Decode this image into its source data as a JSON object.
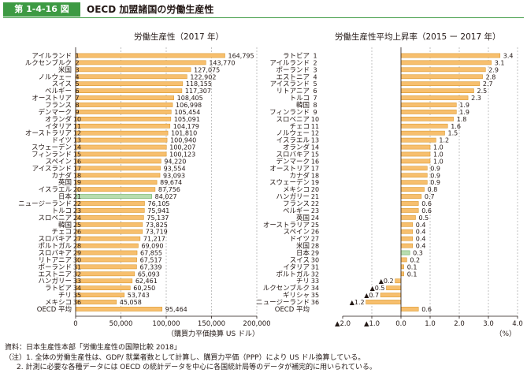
{
  "header": {
    "figure_number": "第 1-4-16 図",
    "title": "OECD 加盟諸国の労働生産性"
  },
  "colors": {
    "bar": "#f7bf6e",
    "bar_stroke": "#d4901f",
    "highlight_bar": "#b8ddb0",
    "highlight_stroke": "#5aa552",
    "axis": "#231815",
    "grid": "#9a9a9a",
    "header_green": "#3d9a43"
  },
  "chart_data": [
    {
      "type": "bar",
      "orientation": "horizontal",
      "title": "労働生産性（2017 年）",
      "xlabel": "（購買力平価換算 US ドル）",
      "xlim": [
        0,
        200000
      ],
      "xticks": [
        "0",
        "50,000",
        "100,000",
        "150,000",
        "200,000"
      ],
      "xtick_values": [
        0,
        50000,
        100000,
        150000,
        200000
      ],
      "grid": "vertical dashed",
      "highlight_category": "日本",
      "categories": [
        "アイルランド",
        "ルクセンブルク",
        "米国",
        "ノルウェー",
        "スイス",
        "ベルギー",
        "オーストリア",
        "フランス",
        "デンマーク",
        "オランダ",
        "イタリア",
        "オーストラリア",
        "ドイツ",
        "スウェーデン",
        "フィンランド",
        "スペイン",
        "アイスランド",
        "カナダ",
        "英国",
        "イスラエル",
        "日本",
        "ニュージーランド",
        "トルコ",
        "スロベニア",
        "韓国",
        "チェコ",
        "スロバキア",
        "ポルトガル",
        "スロバキア",
        "リトアニア",
        "ポーランド",
        "エストニア",
        "ハンガリー",
        "ラトビア",
        "チリ",
        "メキシコ",
        "OECD 平均"
      ],
      "ranks": [
        "1",
        "2",
        "3",
        "4",
        "5",
        "6",
        "7",
        "8",
        "9",
        "10",
        "11",
        "12",
        "13",
        "14",
        "15",
        "16",
        "17",
        "18",
        "19",
        "20",
        "21",
        "22",
        "23",
        "24",
        "25",
        "26",
        "27",
        "28",
        "29",
        "30",
        "31",
        "32",
        "33",
        "34",
        "35",
        "36",
        ""
      ],
      "values": [
        164795,
        143770,
        127075,
        122902,
        118155,
        117307,
        108405,
        106998,
        105454,
        105091,
        104179,
        101810,
        100940,
        100207,
        100123,
        94220,
        93554,
        93093,
        89674,
        87756,
        84027,
        76105,
        75941,
        75137,
        73825,
        73719,
        71217,
        69090,
        67855,
        67517,
        67339,
        65093,
        62461,
        60250,
        53743,
        45058,
        95464
      ],
      "value_labels": [
        "164,795",
        "143,770",
        "127,075",
        "122,902",
        "118,155",
        "117,307",
        "108,405",
        "106,998",
        "105,454",
        "105,091",
        "104,179",
        "101,810",
        "100,940",
        "100,207",
        "100,123",
        "94,220",
        "93,554",
        "93,093",
        "89,674",
        "87,756",
        "84,027",
        "76,105",
        "75,941",
        "75,137",
        "73,825",
        "73,719",
        "71,217",
        "69,090",
        "67,855",
        "67,517",
        "67,339",
        "65,093",
        "62,461",
        "60,250",
        "53,743",
        "45,058",
        "95,464"
      ]
    },
    {
      "type": "bar",
      "orientation": "horizontal",
      "title": "労働生産性平均上昇率（2015 ー 2017 年）",
      "xlabel": "（%）",
      "xlim": [
        -2.0,
        4.0
      ],
      "xticks": [
        "▲2.0",
        "▲1.0",
        "0.0",
        "1.0",
        "2.0",
        "3.0",
        "4.0"
      ],
      "xtick_values": [
        -2,
        -1,
        0,
        1,
        2,
        3,
        4
      ],
      "grid": "vertical dashed",
      "highlight_category": "日本",
      "categories": [
        "ラトビア",
        "アイルランド",
        "ポーランド",
        "エストニア",
        "アイスランド",
        "リトアニア",
        "トルコ",
        "韓国",
        "フィンランド",
        "スロベニア",
        "チェコ",
        "ノルウェー",
        "イスラエル",
        "オランダ",
        "スロバキア",
        "デンマーク",
        "オーストリア",
        "カナダ",
        "スウェーデン",
        "メキシコ",
        "ハンガリー",
        "フランス",
        "ベルギー",
        "英国",
        "オーストラリア",
        "スペイン",
        "ドイツ",
        "米国",
        "日本",
        "スイス",
        "イタリア",
        "ポルトガル",
        "チリ",
        "ルクセンブルク",
        "ギリシャ",
        "ニュージーランド",
        "OECD 平均"
      ],
      "ranks": [
        "1",
        "2",
        "3",
        "4",
        "5",
        "6",
        "7",
        "8",
        "9",
        "10",
        "11",
        "12",
        "13",
        "14",
        "15",
        "16",
        "17",
        "18",
        "19",
        "20",
        "21",
        "22",
        "23",
        "24",
        "25",
        "26",
        "27",
        "28",
        "29",
        "30",
        "31",
        "32",
        "33",
        "34",
        "35",
        "36",
        ""
      ],
      "values": [
        3.4,
        3.1,
        2.9,
        2.8,
        2.7,
        2.5,
        2.3,
        1.9,
        1.9,
        1.8,
        1.6,
        1.5,
        1.2,
        1.0,
        1.0,
        1.0,
        0.9,
        0.9,
        0.9,
        0.8,
        0.7,
        0.6,
        0.6,
        0.5,
        0.4,
        0.4,
        0.4,
        0.4,
        0.3,
        0.2,
        0.1,
        0.1,
        -0.2,
        -0.5,
        -0.7,
        -1.2,
        0.6
      ],
      "value_labels": [
        "3.4",
        "3.1",
        "2.9",
        "2.8",
        "2.7",
        "2.5",
        "2.3",
        "1.9",
        "1.9",
        "1.8",
        "1.6",
        "1.5",
        "1.2",
        "1.0",
        "1.0",
        "1.0",
        "0.9",
        "0.9",
        "0.9",
        "0.8",
        "0.7",
        "0.6",
        "0.6",
        "0.5",
        "0.4",
        "0.4",
        "0.4",
        "0.4",
        "0.3",
        "0.2",
        "0.1",
        "0.1",
        "▲0.2",
        "▲0.5",
        "▲0.7",
        "▲1.2",
        "0.6"
      ]
    }
  ],
  "notes": [
    "資料：日本生産性本部「労働生産性の国際比較 2018」",
    "（注）1. 全体の労働生産性は、GDP/ 就業者数として計算し、購買力平価（PPP）により US ドル換算している。",
    "2. 計測に必要な各種データには OECD の統計データを中心に各国統計局等のデータが補完的に用いられている。"
  ]
}
